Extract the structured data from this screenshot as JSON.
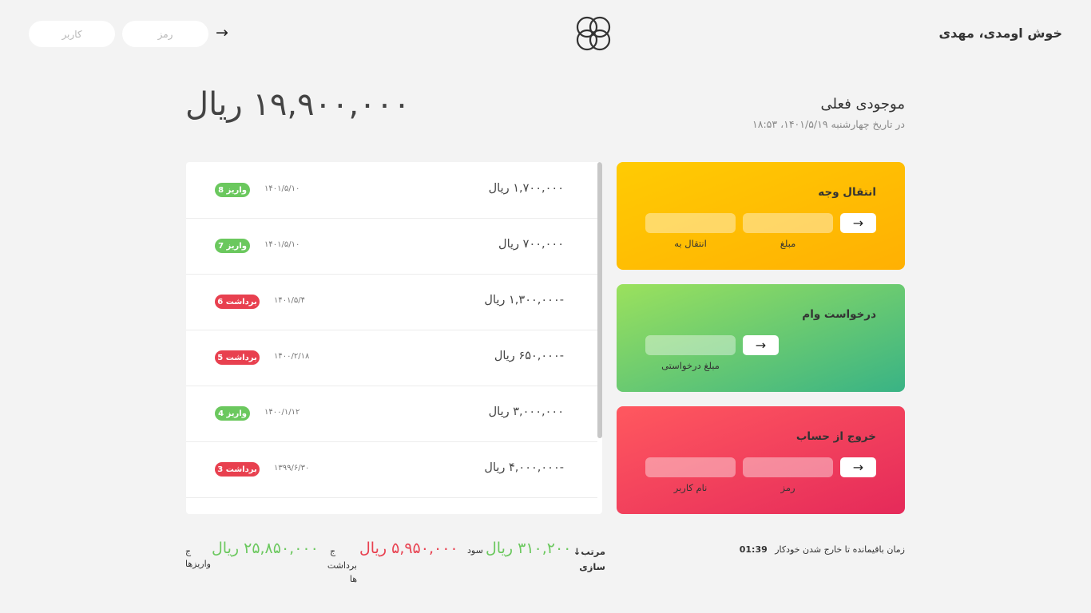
{
  "header": {
    "welcome": "خوش اومدی، مهدی",
    "user_placeholder": "کاربر",
    "pass_placeholder": "رمز",
    "arrow": "→"
  },
  "balance": {
    "title": "موجودی فعلی",
    "date": "در تاریخ چهارشنبه ۱۴۰۱/۵/۱۹، ۱۸:۵۳",
    "amount": "۱۹,۹۰۰,۰۰۰ ریال"
  },
  "transactions": [
    {
      "amount": "۱,۷۰۰,۰۰۰ ریال",
      "date": "۱۴۰۱/۵/۱۰",
      "badge": "واریز 8",
      "kind": "deposit"
    },
    {
      "amount": "۷۰۰,۰۰۰ ریال",
      "date": "۱۴۰۱/۵/۱۰",
      "badge": "واریز 7",
      "kind": "deposit"
    },
    {
      "amount": "-۱,۳۰۰,۰۰۰ ریال",
      "date": "۱۴۰۱/۵/۴",
      "badge": "برداشت 6",
      "kind": "withdraw"
    },
    {
      "amount": "-۶۵۰,۰۰۰ ریال",
      "date": "۱۴۰۰/۲/۱۸",
      "badge": "برداشت 5",
      "kind": "withdraw"
    },
    {
      "amount": "۳,۰۰۰,۰۰۰ ریال",
      "date": "۱۴۰۰/۱/۱۲",
      "badge": "واریز 4",
      "kind": "deposit"
    },
    {
      "amount": "-۴,۰۰۰,۰۰۰ ریال",
      "date": "۱۳۹۹/۶/۳۰",
      "badge": "برداشت 3",
      "kind": "withdraw"
    }
  ],
  "transfer_card": {
    "title": "انتقال وجه",
    "to_label": "انتقال به",
    "amount_label": "مبلغ",
    "go": "→"
  },
  "loan_card": {
    "title": "درخواست وام",
    "amount_label": "مبلغ درخواستی",
    "go": "→"
  },
  "close_card": {
    "title": "خروج از حساب",
    "user_label": "نام کاربر",
    "pass_label": "رمز",
    "go": "→"
  },
  "summary": {
    "deposits_label": "واریزها",
    "deposits_prefix": "ج",
    "deposits_value": "۲۵,۸۵۰,۰۰۰ ریال",
    "withdrawals_label": "برداشت ها",
    "withdrawals_prefix": "ج",
    "withdrawals_value": "۵,۹۵۰,۰۰۰ ریال",
    "interest_label": "سود",
    "interest_value": "۳۱۰,۲۰۰ ریال",
    "sort_label": "مرتب↓ سازی",
    "timer_label": "زمان باقیمانده تا خارج شدن خودکار",
    "timer_value": "01:39"
  },
  "colors": {
    "deposit": "#6bc85e",
    "withdraw": "#e8404f",
    "transfer_from": "#ffcb03",
    "transfer_to": "#ffb003",
    "loan_from": "#9be15d",
    "loan_to": "#39b385",
    "close_from": "#ff585f",
    "close_to": "#e52a5a"
  }
}
